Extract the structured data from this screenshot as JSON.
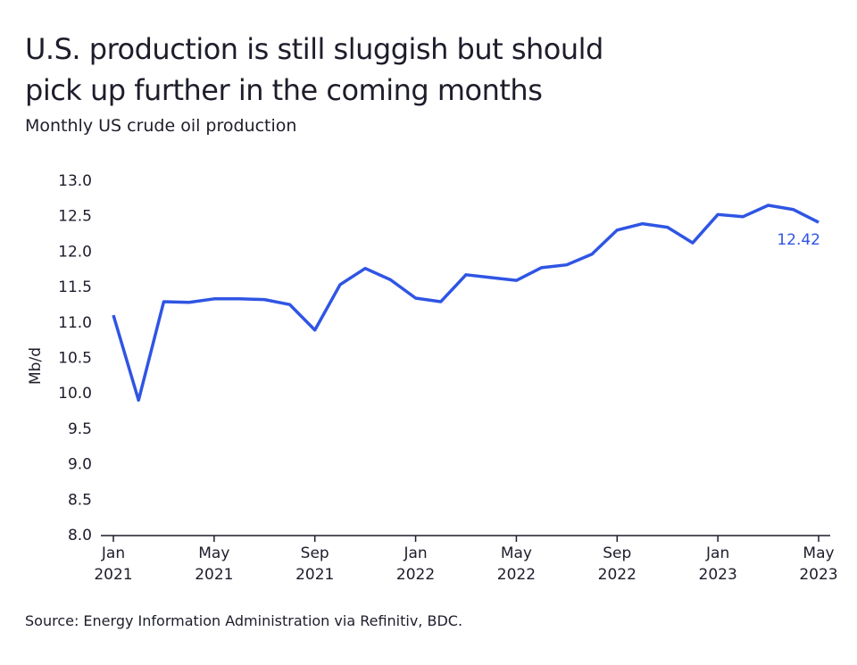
{
  "chart_data": {
    "type": "line",
    "title": "U.S. production is still sluggish but should\npick up further in the coming months",
    "subtitle": "Monthly US crude oil production",
    "y_label": "Mb/d",
    "source": "Source: Energy Information Administration via Refinitiv, BDC.",
    "categories": [
      "Jan\n2021",
      null,
      null,
      null,
      "May\n2021",
      null,
      null,
      null,
      "Sep\n2021",
      null,
      null,
      null,
      "Jan\n2022",
      null,
      null,
      null,
      "May\n2022",
      null,
      null,
      null,
      "Sep\n2022",
      null,
      null,
      null,
      "Jan\n2023",
      null,
      null,
      null,
      "May\n2023"
    ],
    "series": [
      {
        "name": "US crude oil production",
        "color": "#2f55e4",
        "values": [
          11.11,
          9.91,
          11.3,
          11.29,
          11.34,
          11.34,
          11.33,
          11.26,
          10.9,
          11.54,
          11.77,
          11.61,
          11.35,
          11.3,
          11.68,
          11.64,
          11.6,
          11.78,
          11.82,
          11.97,
          12.31,
          12.4,
          12.35,
          12.13,
          12.53,
          12.5,
          12.66,
          12.6,
          12.42
        ]
      }
    ],
    "label_last_value": true,
    "ylim": [
      8,
      13
    ],
    "yticks": [
      {
        "value": 8,
        "label": "8.0"
      },
      8.5,
      {
        "value": 9,
        "label": "9.0"
      },
      9.5,
      {
        "value": 10,
        "label": "10.0"
      },
      10.5,
      {
        "value": 11,
        "label": "11.0"
      },
      11.5,
      {
        "value": 12,
        "label": "12.0"
      },
      12.5,
      {
        "value": 13,
        "label": "13.0"
      }
    ],
    "grid": false
  }
}
